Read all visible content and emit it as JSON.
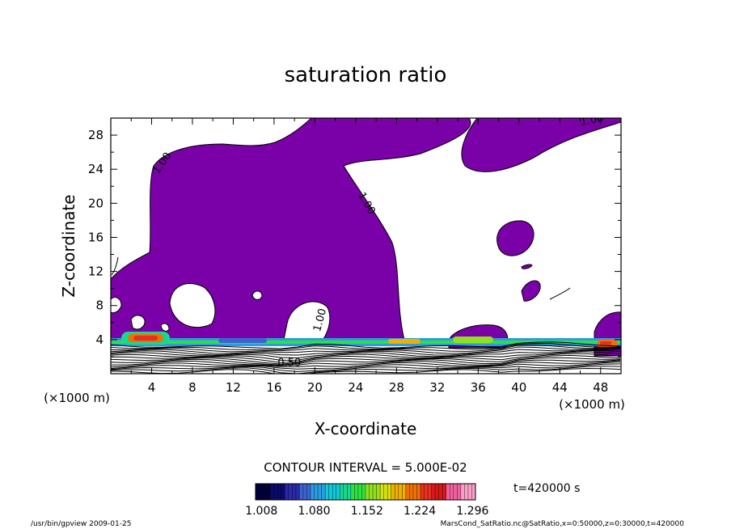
{
  "chart_data": {
    "type": "contour",
    "title": "saturation ratio",
    "xlabel": "X-coordinate",
    "ylabel": "Z-coordinate",
    "x_unit": "(×1000 m)",
    "y_unit": "(×1000 m)",
    "xlim": [
      0,
      50
    ],
    "ylim": [
      0,
      30
    ],
    "xticks": [
      "4",
      "8",
      "12",
      "16",
      "20",
      "24",
      "28",
      "32",
      "36",
      "40",
      "44",
      "48"
    ],
    "yticks": [
      "4",
      "8",
      "12",
      "16",
      "20",
      "24",
      "28"
    ],
    "xtick_values": [
      4,
      8,
      12,
      16,
      20,
      24,
      28,
      32,
      36,
      40,
      44,
      48
    ],
    "ytick_values": [
      4,
      8,
      12,
      16,
      20,
      24,
      28
    ],
    "contour_labels": [
      {
        "text": "1.00",
        "x": 5.3,
        "y": 24.5,
        "angle": -55
      },
      {
        "text": "1.00",
        "x": 24.8,
        "y": 19.8,
        "angle": 60
      },
      {
        "text": "1.00",
        "x": 47.2,
        "y": 29.4,
        "angle": -10
      },
      {
        "text": "1.00",
        "x": 20.8,
        "y": 6.2,
        "angle": -75
      },
      {
        "text": "0.50",
        "x": 17.5,
        "y": 0.9,
        "angle": 0
      }
    ],
    "contour_interval": "CONTOUR INTERVAL = 5.000E-02",
    "colorbar": {
      "tick_labels": [
        "1.008",
        "1.080",
        "1.152",
        "1.224",
        "1.296"
      ],
      "min": 1.0,
      "max": 1.3,
      "colors": [
        "#00003a",
        "#0a0a6a",
        "#2a2aa8",
        "#3c64d0",
        "#2a9ce0",
        "#10c8d8",
        "#18d890",
        "#30e040",
        "#90e020",
        "#d8e010",
        "#f0b000",
        "#f07000",
        "#e83020",
        "#d81818",
        "#f060a0",
        "#f8a0c8"
      ]
    },
    "fill_color": "#7a00a8",
    "time_label": "t=420000 s"
  },
  "footer": {
    "left": "/usr/bin/gpview  2009-01-25",
    "right": "MarsCond_SatRatio.nc@SatRatio,x=0:50000,z=0:30000,t=420000"
  }
}
